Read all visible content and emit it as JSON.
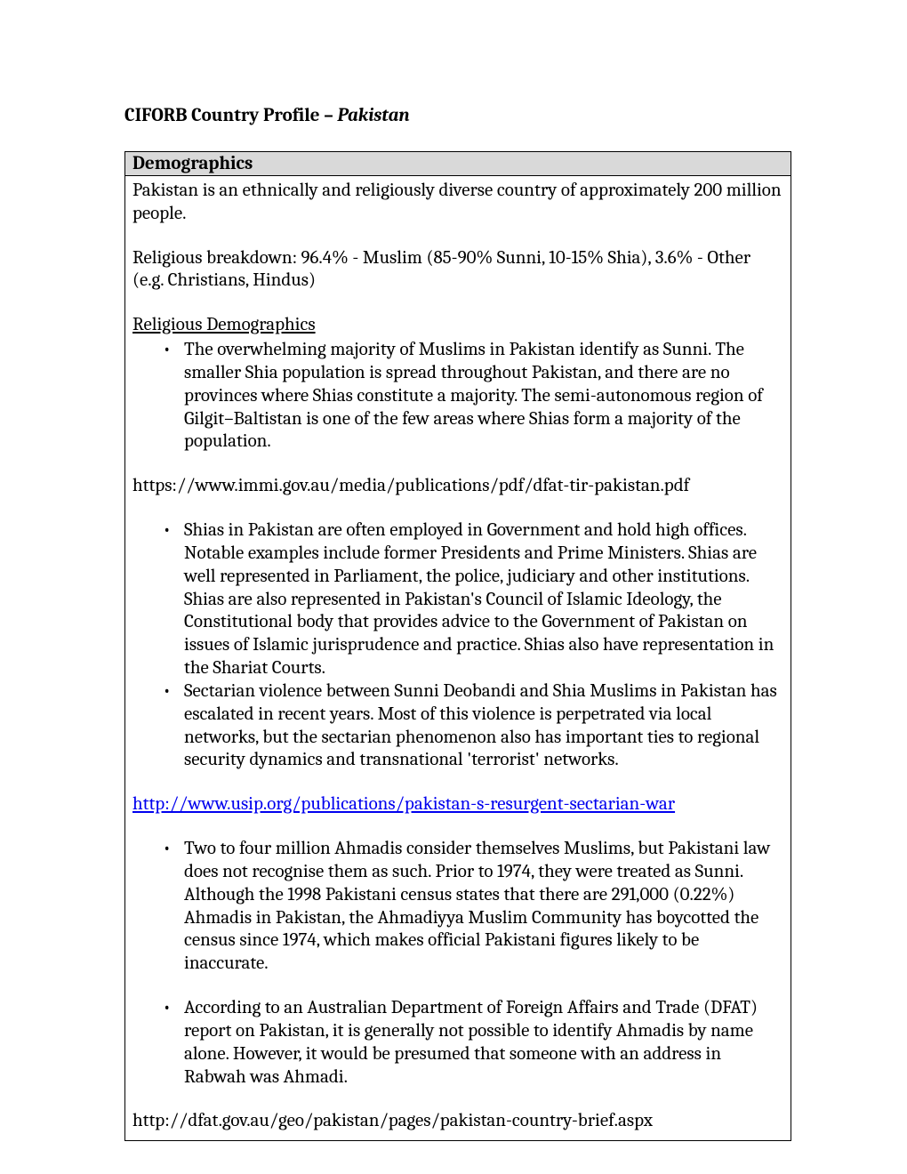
{
  "title_prefix": "CIFORB Country Profile – ",
  "title_country": "Pakistan",
  "section_header": "Demographics",
  "intro": "Pakistan is an ethnically and religiously diverse country of approximately 200 million people.",
  "breakdown": "Religious breakdown: 96.4% - Muslim (85-90% Sunni, 10-15% Shia), 3.6% - Other (e.g. Christians, Hindus)",
  "subhead": "Religious Demographics",
  "bullet1": "The overwhelming majority of Muslims in Pakistan identify as Sunni. The smaller Shia population is spread throughout Pakistan, and  there are no provinces where Shias constitute a majority. The semi-autonomous region of Gilgit–Baltistan is one of the few areas where Shias form a majority of the population.",
  "link1": "https://www.immi.gov.au/media/publications/pdf/dfat-tir-pakistan.pdf",
  "bullet2": "Shias in Pakistan are often employed in Government and hold high offices. Notable examples include former Presidents and Prime Ministers. Shias are well represented in Parliament, the police, judiciary and other institutions. Shias are also represented in Pakistan's Council of Islamic Ideology, the Constitutional body that provides advice to the Government of Pakistan on issues of Islamic jurisprudence and practice. Shias also have representation in the Shariat Courts.",
  "bullet3": "Sectarian violence between Sunni Deobandi and Shia Muslims in Pakistan has escalated in recent years. Most of this violence is perpetrated via local networks, but the sectarian phenomenon also has important ties to regional security dynamics and transnational 'terrorist' networks.",
  "link2": "http://www.usip.org/publications/pakistan-s-resurgent-sectarian-war",
  "bullet4": "Two to four million Ahmadis consider themselves Muslims, but Pakistani law does not recognise them as such. Prior to 1974, they were treated as Sunni. Although the 1998 Pakistani census states that there are 291,000 (0.22%) Ahmadis in Pakistan, the Ahmadiyya Muslim Community has boycotted the census since 1974, which makes official Pakistani figures likely to be inaccurate.",
  "bullet5": "According to an Australian Department of Foreign Affairs and Trade (DFAT) report on Pakistan, it is generally not possible to identify Ahmadis by name alone. However, it would be presumed that someone with an address in Rabwah was Ahmadi.",
  "link3": "http://dfat.gov.au/geo/pakistan/pages/pakistan-country-brief.aspx"
}
